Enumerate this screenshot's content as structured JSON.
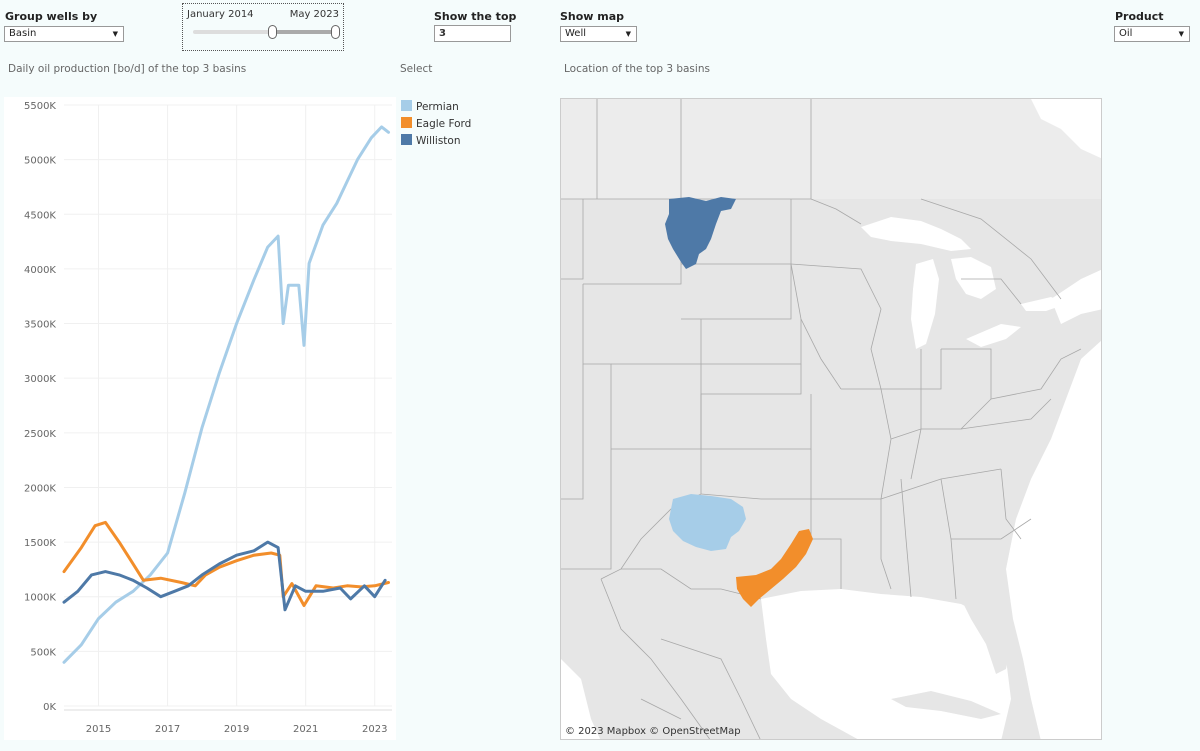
{
  "filters": {
    "group_by": {
      "title": "Group wells by",
      "value": "Basin"
    },
    "date_range": {
      "start_label": "January 2014",
      "end_label": "May 2023"
    },
    "show_top": {
      "title": "Show the top",
      "value": "3"
    },
    "show_map": {
      "title": "Show map",
      "value": "Well"
    },
    "product": {
      "title": "Product",
      "value": "Oil"
    }
  },
  "chart_title": "Daily oil production [bo/d] of the top 3 basins",
  "legend": {
    "title": "Select",
    "items": [
      {
        "label": "Permian",
        "color": "#a6cde8"
      },
      {
        "label": "Eagle Ford",
        "color": "#f28e2b"
      },
      {
        "label": "Williston",
        "color": "#4e79a7"
      }
    ]
  },
  "map": {
    "title": "Location of the top 3 basins",
    "attribution": "© 2023 Mapbox  © OpenStreetMap"
  },
  "chart_data": {
    "type": "line",
    "title": "Daily oil production [bo/d] of the top 3 basins",
    "xlabel": "",
    "ylabel": "",
    "ylim": [
      0,
      5500000
    ],
    "xlim": [
      2014,
      2023.5
    ],
    "grid": true,
    "legend_position": "right",
    "y_ticks": [
      "0K",
      "500K",
      "1000K",
      "1500K",
      "2000K",
      "2500K",
      "3000K",
      "3500K",
      "4000K",
      "4500K",
      "5000K",
      "5500K"
    ],
    "x_ticks": [
      "2015",
      "2017",
      "2019",
      "2021",
      "2023"
    ],
    "series": [
      {
        "name": "Permian",
        "color": "#a6cde8",
        "points": [
          [
            2014.0,
            400000
          ],
          [
            2014.5,
            560000
          ],
          [
            2015.0,
            800000
          ],
          [
            2015.5,
            950000
          ],
          [
            2016.0,
            1050000
          ],
          [
            2016.5,
            1200000
          ],
          [
            2017.0,
            1400000
          ],
          [
            2017.5,
            1950000
          ],
          [
            2018.0,
            2550000
          ],
          [
            2018.5,
            3050000
          ],
          [
            2019.0,
            3500000
          ],
          [
            2019.5,
            3900000
          ],
          [
            2019.9,
            4200000
          ],
          [
            2020.2,
            4300000
          ],
          [
            2020.35,
            3500000
          ],
          [
            2020.5,
            3850000
          ],
          [
            2020.8,
            3850000
          ],
          [
            2020.95,
            3300000
          ],
          [
            2021.1,
            4050000
          ],
          [
            2021.5,
            4400000
          ],
          [
            2021.9,
            4600000
          ],
          [
            2022.2,
            4800000
          ],
          [
            2022.5,
            5000000
          ],
          [
            2022.9,
            5200000
          ],
          [
            2023.2,
            5300000
          ],
          [
            2023.4,
            5250000
          ]
        ]
      },
      {
        "name": "Eagle Ford",
        "color": "#f28e2b",
        "points": [
          [
            2014.0,
            1230000
          ],
          [
            2014.5,
            1450000
          ],
          [
            2014.9,
            1650000
          ],
          [
            2015.2,
            1680000
          ],
          [
            2015.6,
            1500000
          ],
          [
            2016.0,
            1300000
          ],
          [
            2016.3,
            1150000
          ],
          [
            2016.8,
            1170000
          ],
          [
            2017.4,
            1130000
          ],
          [
            2017.8,
            1100000
          ],
          [
            2018.1,
            1200000
          ],
          [
            2018.5,
            1270000
          ],
          [
            2019.0,
            1330000
          ],
          [
            2019.5,
            1380000
          ],
          [
            2020.0,
            1400000
          ],
          [
            2020.25,
            1380000
          ],
          [
            2020.35,
            1000000
          ],
          [
            2020.6,
            1120000
          ],
          [
            2020.95,
            920000
          ],
          [
            2021.3,
            1100000
          ],
          [
            2021.8,
            1080000
          ],
          [
            2022.2,
            1100000
          ],
          [
            2022.6,
            1090000
          ],
          [
            2023.0,
            1100000
          ],
          [
            2023.4,
            1130000
          ]
        ]
      },
      {
        "name": "Williston",
        "color": "#4e79a7",
        "points": [
          [
            2014.0,
            950000
          ],
          [
            2014.4,
            1050000
          ],
          [
            2014.8,
            1200000
          ],
          [
            2015.2,
            1230000
          ],
          [
            2015.6,
            1200000
          ],
          [
            2016.0,
            1150000
          ],
          [
            2016.4,
            1080000
          ],
          [
            2016.8,
            1000000
          ],
          [
            2017.2,
            1050000
          ],
          [
            2017.6,
            1100000
          ],
          [
            2018.0,
            1200000
          ],
          [
            2018.5,
            1300000
          ],
          [
            2019.0,
            1380000
          ],
          [
            2019.5,
            1420000
          ],
          [
            2019.9,
            1500000
          ],
          [
            2020.2,
            1450000
          ],
          [
            2020.4,
            880000
          ],
          [
            2020.7,
            1100000
          ],
          [
            2021.0,
            1050000
          ],
          [
            2021.5,
            1050000
          ],
          [
            2022.0,
            1080000
          ],
          [
            2022.3,
            980000
          ],
          [
            2022.7,
            1100000
          ],
          [
            2023.0,
            1000000
          ],
          [
            2023.3,
            1150000
          ]
        ]
      }
    ]
  }
}
